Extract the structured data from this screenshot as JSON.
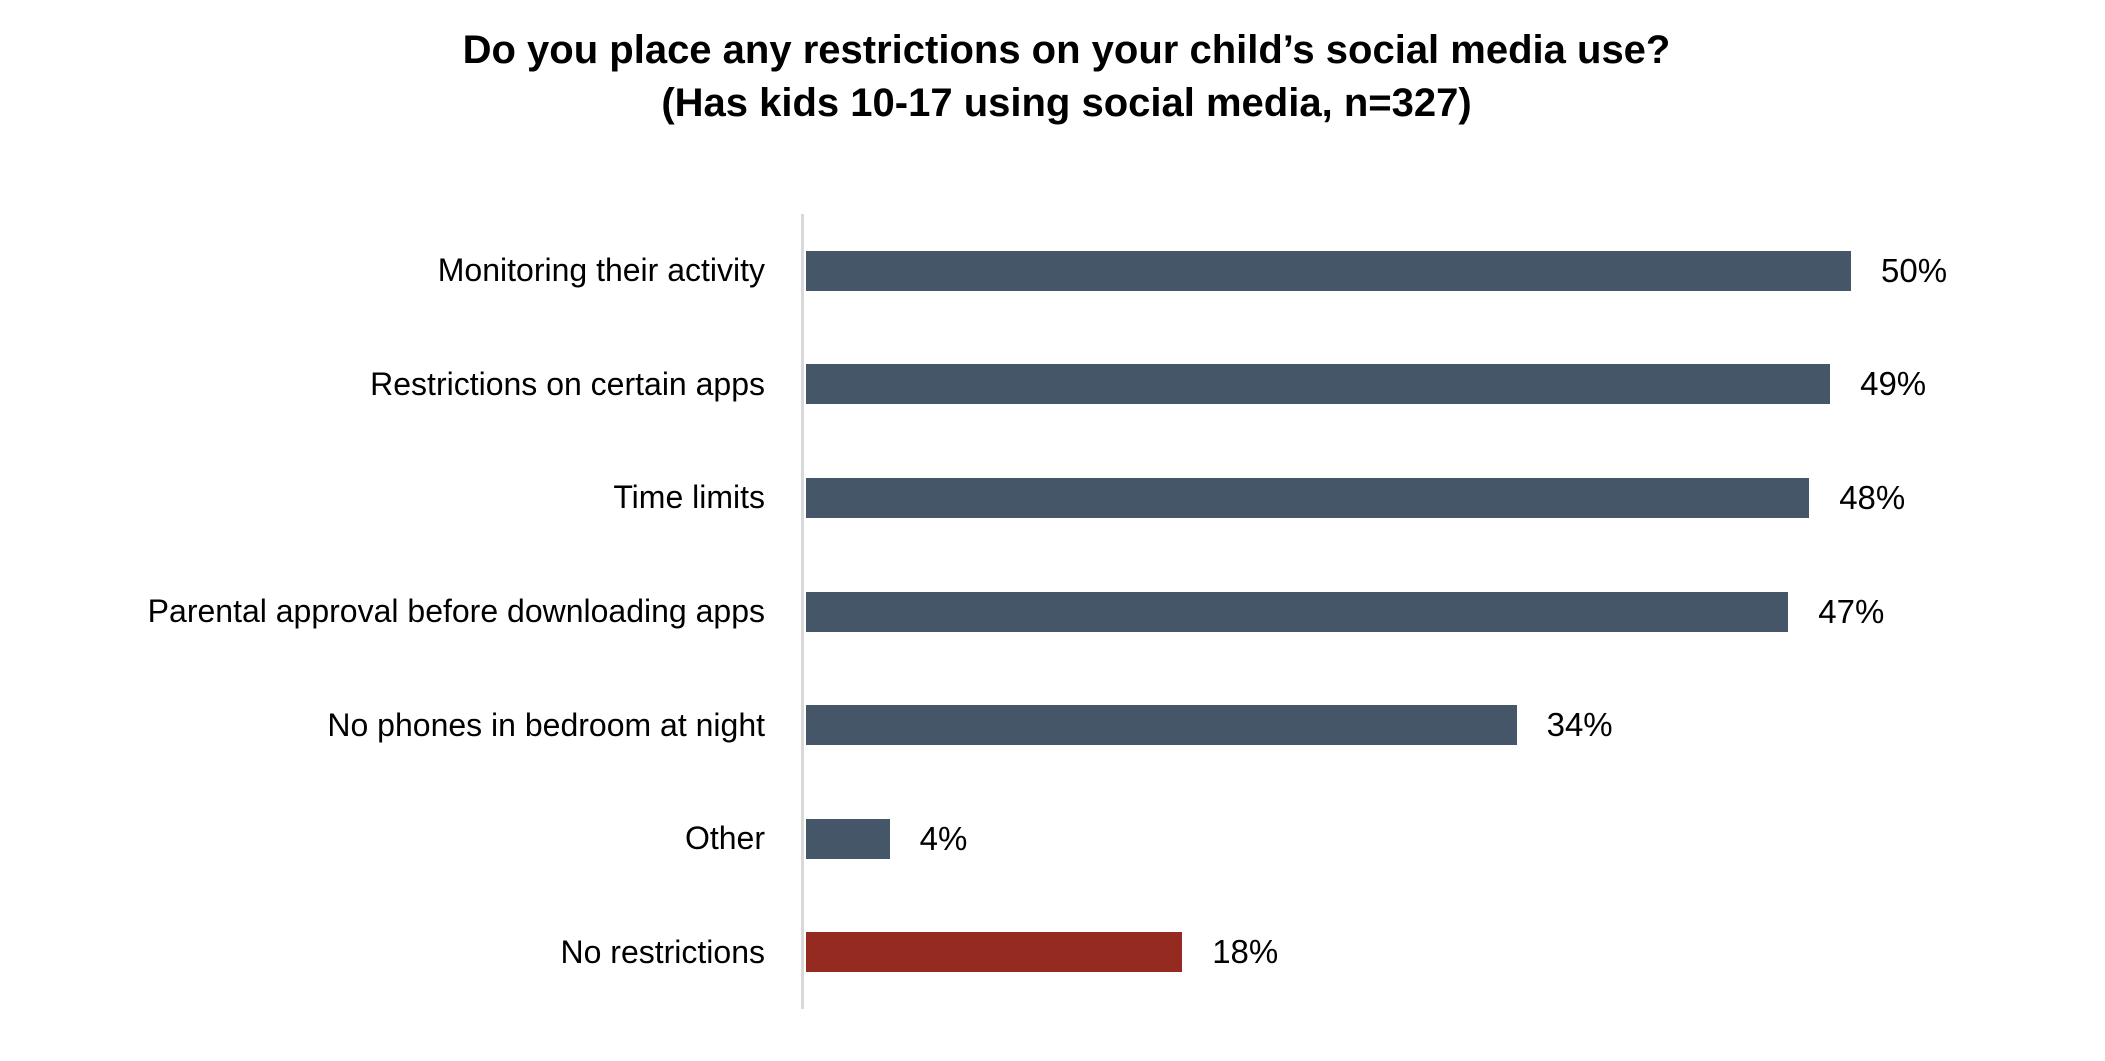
{
  "chart_data": {
    "type": "bar",
    "orientation": "horizontal",
    "title": "Do you place any restrictions on your child’s social media use?",
    "subtitle": "(Has kids 10-17 using social media, n=327)",
    "categories": [
      "Monitoring their activity",
      "Restrictions on certain apps",
      "Time limits",
      "Parental approval before downloading apps",
      "No phones in bedroom at night",
      "Other",
      "No restrictions"
    ],
    "values": [
      50,
      49,
      48,
      47,
      34,
      4,
      18
    ],
    "data_labels": [
      "50%",
      "49%",
      "48%",
      "47%",
      "34%",
      "4%",
      "18%"
    ],
    "bar_colors": [
      "#455669",
      "#455669",
      "#455669",
      "#455669",
      "#455669",
      "#455669",
      "#952a20"
    ],
    "colors": {
      "default_bar": "#455669",
      "highlight_bar": "#952a20",
      "axis_line": "#d9d9d9",
      "text": "#000000"
    },
    "xlim": [
      0,
      62
    ],
    "x_axis_labels": "none",
    "y_axis_labels": "categories",
    "gridlines": false,
    "legend": "none"
  }
}
